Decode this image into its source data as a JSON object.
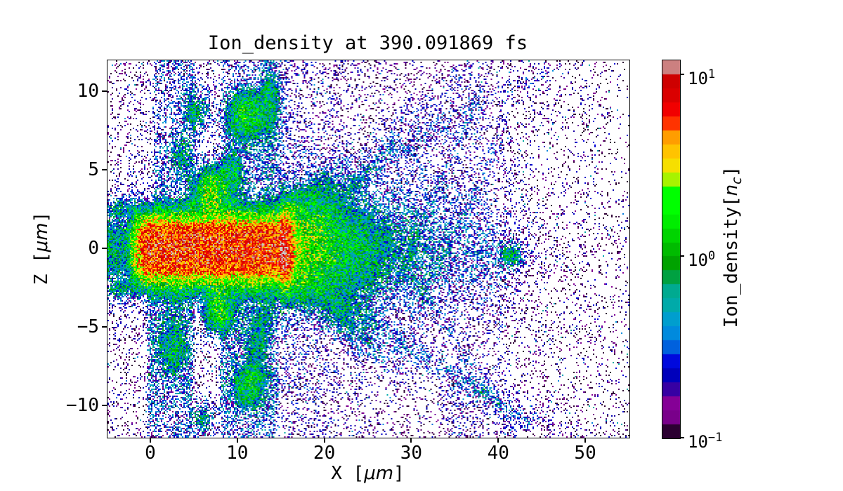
{
  "title": "Ion_density at 390.091869 fs",
  "axes": {
    "xlabel_prefix": "X [",
    "xlabel_math": "μm",
    "xlabel_suffix": "]",
    "ylabel_prefix": "Z [",
    "ylabel_math": "μm",
    "ylabel_suffix": "]",
    "xtick_values": [
      0,
      10,
      20,
      30,
      40,
      50
    ],
    "xtick_labels": [
      "0",
      "10",
      "20",
      "30",
      "40",
      "50"
    ],
    "ytick_values": [
      10,
      5,
      0,
      -5,
      -10
    ],
    "ytick_labels": [
      "10",
      "5",
      "0",
      "−5",
      "−10"
    ]
  },
  "colorbar": {
    "label_prefix": "Ion_density[",
    "label_var": "n",
    "label_sub": "c",
    "label_suffix": "]",
    "scale": "log",
    "vmin": 0.1,
    "vmax": 12,
    "steps": 27,
    "ticks": [
      {
        "value": 10,
        "base": "10",
        "exp": "1"
      },
      {
        "value": 1,
        "base": "10",
        "exp": "0"
      },
      {
        "value": 0.1,
        "base": "10",
        "exp": "−1"
      }
    ],
    "cmap": "nipy_spectral"
  },
  "chart_data": {
    "type": "heatmap",
    "title": "Ion_density at 390.091869 fs",
    "xlabel": "X [μm]",
    "ylabel": "Z [μm]",
    "xlim": [
      -5,
      55
    ],
    "ylim": [
      -12,
      12
    ],
    "zscale": "log",
    "zlim": [
      0.1,
      12
    ],
    "zlabel": "Ion_density[n_c]",
    "cmap_anchors": [
      [
        0.0,
        0,
        0,
        0
      ],
      [
        0.05,
        0.4667,
        0,
        0.5333
      ],
      [
        0.1,
        0.5333,
        0,
        0.6
      ],
      [
        0.15,
        0,
        0,
        0.6667
      ],
      [
        0.2,
        0,
        0,
        0.8667
      ],
      [
        0.25,
        0,
        0.4667,
        0.8667
      ],
      [
        0.3,
        0,
        0.6,
        0.8667
      ],
      [
        0.35,
        0,
        0.6667,
        0.6667
      ],
      [
        0.4,
        0,
        0.6667,
        0.5333
      ],
      [
        0.45,
        0,
        0.6,
        0
      ],
      [
        0.5,
        0,
        0.7333,
        0
      ],
      [
        0.55,
        0,
        0.8667,
        0
      ],
      [
        0.6,
        0,
        1,
        0
      ],
      [
        0.65,
        0,
        1,
        0
      ],
      [
        0.7,
        0.9333,
        0.9333,
        0
      ],
      [
        0.75,
        1,
        0.8,
        0
      ],
      [
        0.8,
        1,
        0.6,
        0
      ],
      [
        0.85,
        1,
        0,
        0
      ],
      [
        0.9,
        0.8667,
        0,
        0
      ],
      [
        0.95,
        0.8,
        0,
        0
      ],
      [
        1.0,
        0.8,
        0.8,
        0.8
      ]
    ],
    "model": {
      "seed": 1337,
      "noise_hi": 0.65,
      "noise_lo": 0.95,
      "noise_knee": 2.0,
      "dropout_knee": 0.55,
      "dot_value": 0.13,
      "dot_noise": 0.7,
      "bright_dot_p": 0.04,
      "bg": {
        "amp": 0.05,
        "cx": 7,
        "sx": 25,
        "floor": 0.027
      },
      "core": {
        "amp_left": 0.55,
        "amp": 6.5,
        "ramp_x0": -3,
        "ramp_x1": 0,
        "x_end": 15.3,
        "end_sigma": 0.9,
        "half_width": 1.9,
        "edge_pow": 4
      },
      "wings": {
        "amp": 0.33,
        "z_center": 2.6,
        "z_sigma": 0.6,
        "x_end": 15.8,
        "end_sigma": 1.0
      },
      "nearband": {
        "amp": 0.17,
        "x0": -4.5,
        "x1": 15.4,
        "z_decay": 1.6
      },
      "columns_up": {
        "amp": 0.25,
        "boxes": [
          [
            0.1,
            5.2
          ],
          [
            8.0,
            15.1
          ]
        ],
        "z0": 2,
        "z_decay": 16
      },
      "columns_dn": {
        "amp": 0.27,
        "boxes": [
          [
            -0.6,
            5.0
          ],
          [
            7.7,
            14.9
          ]
        ],
        "z0": 2,
        "z_decay": 16
      },
      "col_patch": {
        "base": 0.35,
        "range": 1.3,
        "freq": 0.35
      },
      "plume": {
        "amp": 2.2,
        "x0": 14.8,
        "x_decay": 6,
        "z_sigma": 2.3,
        "z_spread": 0.07
      },
      "halo": {
        "amp": 0.4,
        "x_decay": 9,
        "z_sigma": 3.6
      },
      "fan": {
        "amp": 0.27,
        "x0": 15,
        "x_decay": 14,
        "wedge_b": 2.8,
        "wedge_m": 0.45,
        "wedge_soft": 1.5,
        "outside": 0.25,
        "noise_base": 0.2,
        "noise_range": 1.7,
        "noise_freq": 0.22
      },
      "blobs": [
        [
          5.2,
          8.7,
          1.5,
          1.3,
          0.5
        ],
        [
          11.0,
          8.5,
          2.1,
          1.5,
          0.95
        ],
        [
          13.7,
          9.5,
          1.1,
          1.8,
          0.5
        ],
        [
          6.9,
          3.6,
          1.6,
          1.4,
          1.7
        ],
        [
          9.4,
          4.9,
          1.2,
          1.1,
          0.55
        ],
        [
          3.4,
          5.9,
          1.1,
          1.1,
          0.35
        ],
        [
          7.7,
          -3.9,
          1.5,
          1.3,
          1.15
        ],
        [
          11.4,
          -8.6,
          1.6,
          1.3,
          0.85
        ],
        [
          2.7,
          -6.3,
          1.5,
          1.5,
          0.5
        ],
        [
          12.3,
          -5.6,
          1.6,
          1.6,
          0.4
        ],
        [
          5.9,
          -10.8,
          1.2,
          1.0,
          0.45
        ],
        [
          41.5,
          -0.4,
          1.3,
          0.7,
          0.55
        ],
        [
          38.8,
          -0.6,
          3.2,
          2.9,
          0.1
        ]
      ],
      "streaks": [
        [
          14,
          -0.55,
          15,
          27,
          0.16,
          0.6
        ],
        [
          16,
          0.55,
          16,
          28,
          0.14,
          0.6
        ],
        [
          12,
          -0.35,
          19,
          44,
          0.12,
          0.55
        ],
        [
          30,
          1.3,
          28,
          38,
          0.1,
          0.7
        ],
        [
          34,
          1.15,
          31,
          41,
          0.08,
          0.8
        ],
        [
          28,
          -0.85,
          30,
          43,
          0.08,
          0.7
        ],
        [
          8,
          0.3,
          20,
          46,
          0.07,
          0.8
        ],
        [
          6,
          -0.28,
          24,
          50,
          0.06,
          0.9
        ]
      ]
    }
  }
}
